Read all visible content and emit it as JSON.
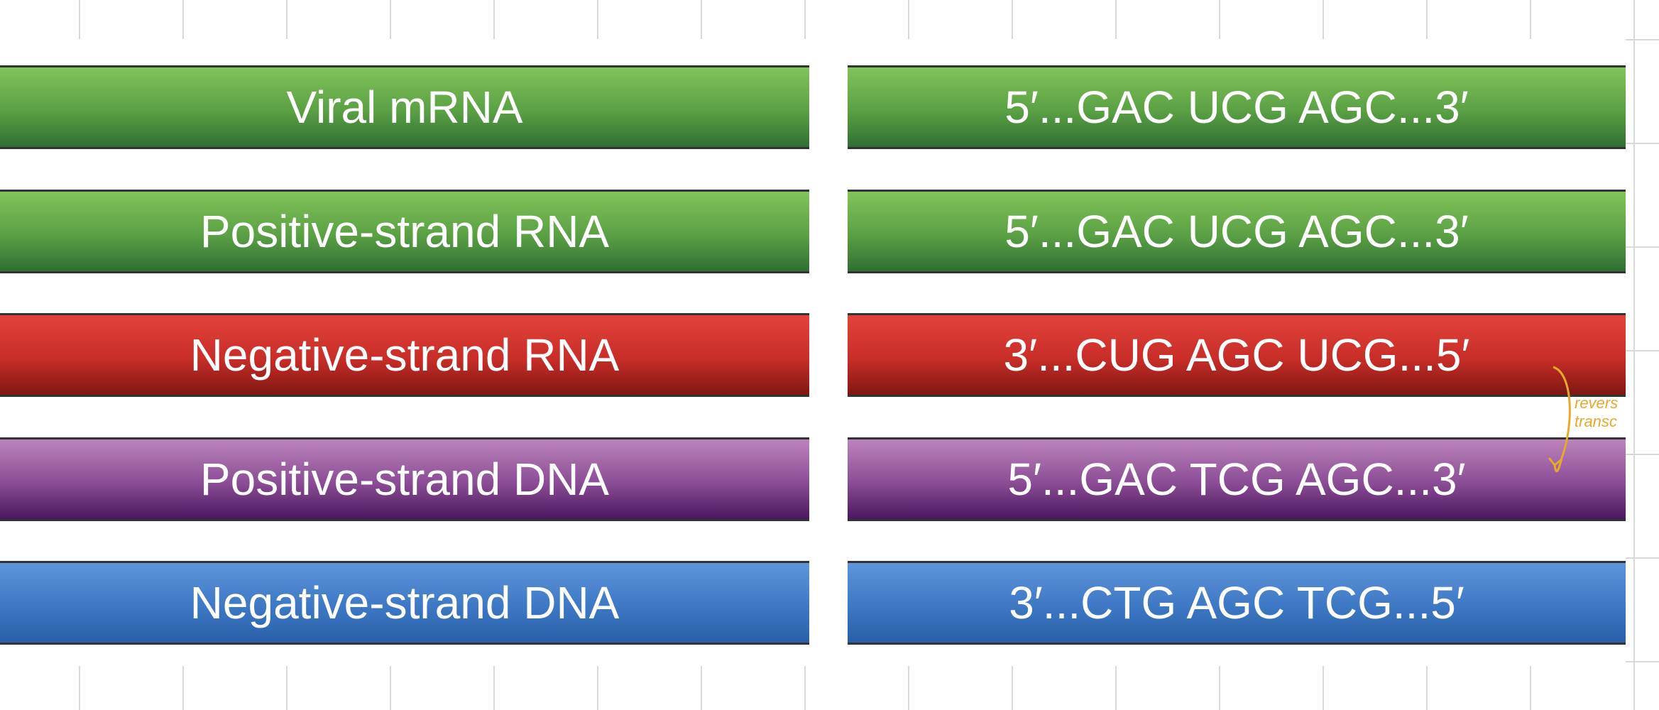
{
  "rows": [
    {
      "label": "Viral mRNA",
      "sequence": "5′...GAC UCG AGC...3′"
    },
    {
      "label": "Positive-strand RNA",
      "sequence": "5′...GAC UCG AGC...3′"
    },
    {
      "label": "Negative-strand RNA",
      "sequence": "3′...CUG AGC UCG...5′"
    },
    {
      "label": "Positive-strand DNA",
      "sequence": "5′...GAC TCG AGC...3′"
    },
    {
      "label": "Negative-strand DNA",
      "sequence": "3′...CTG AGC TCG...5′"
    }
  ],
  "annotation": {
    "line1": "revers",
    "line2": "transc"
  }
}
